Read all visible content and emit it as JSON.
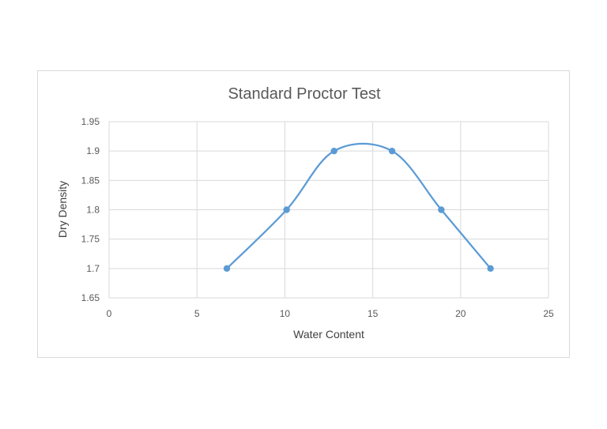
{
  "chart_data": {
    "type": "scatter",
    "title": "Standard Proctor Test",
    "xlabel": "Water Content",
    "ylabel": "Dry Density",
    "xlim": [
      0,
      25
    ],
    "ylim": [
      1.65,
      1.95
    ],
    "xticks": [
      "0",
      "5",
      "10",
      "15",
      "20",
      "25"
    ],
    "yticks": [
      "1.65",
      "1.7",
      "1.75",
      "1.8",
      "1.85",
      "1.9",
      "1.95"
    ],
    "grid": true,
    "smooth_line": true,
    "series": [
      {
        "color": "#5b9bd5",
        "points": [
          {
            "x": 6.7,
            "y": 1.7
          },
          {
            "x": 10.1,
            "y": 1.8
          },
          {
            "x": 12.8,
            "y": 1.9
          },
          {
            "x": 16.1,
            "y": 1.9
          },
          {
            "x": 18.9,
            "y": 1.8
          },
          {
            "x": 21.7,
            "y": 1.7
          }
        ]
      }
    ]
  }
}
